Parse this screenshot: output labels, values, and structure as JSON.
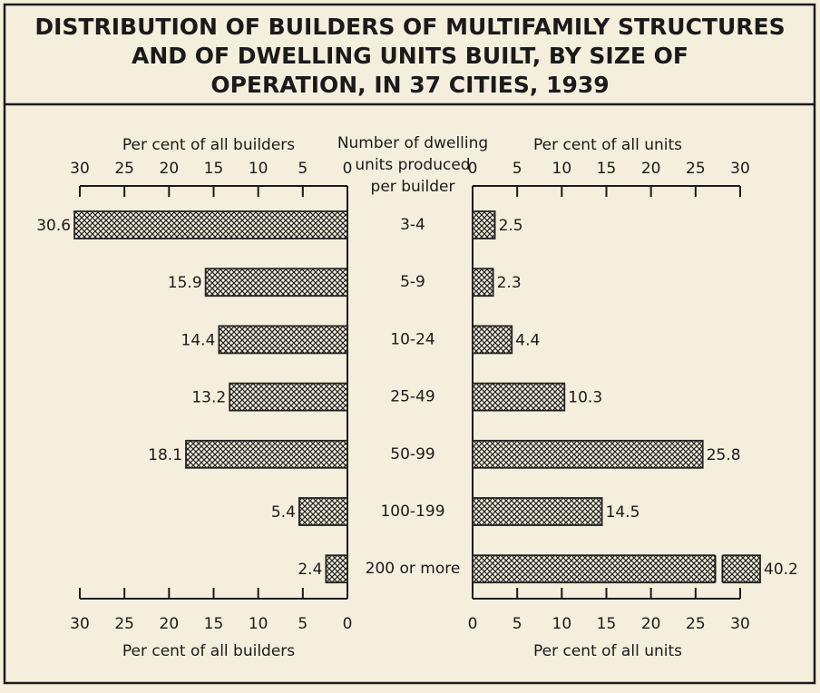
{
  "chart_data": {
    "type": "butterfly",
    "title": [
      "DISTRIBUTION OF BUILDERS OF MULTIFAMILY STRUCTURES",
      "AND OF DWELLING UNITS BUILT, BY SIZE OF",
      "OPERATION, IN 37 CITIES, 1939"
    ],
    "category_label": [
      "Number of dwelling",
      "units produced",
      "per builder"
    ],
    "categories": [
      "3-4",
      "5-9",
      "10-24",
      "25-49",
      "50-99",
      "100-199",
      "200 or more"
    ],
    "left": {
      "axis_label": "Per cent of all builders",
      "xlim": [
        0,
        30
      ],
      "xticks": [
        0,
        5,
        10,
        15,
        20,
        25,
        30
      ],
      "values": [
        30.6,
        15.9,
        14.4,
        13.2,
        18.1,
        5.4,
        2.4
      ]
    },
    "right": {
      "axis_label": "Per cent of all units",
      "xlim": [
        0,
        30
      ],
      "xticks": [
        0,
        5,
        10,
        15,
        20,
        25,
        30
      ],
      "values": [
        2.5,
        2.3,
        4.4,
        10.3,
        25.8,
        14.5,
        40.2
      ],
      "axis_break": true
    },
    "color": "#222222"
  }
}
